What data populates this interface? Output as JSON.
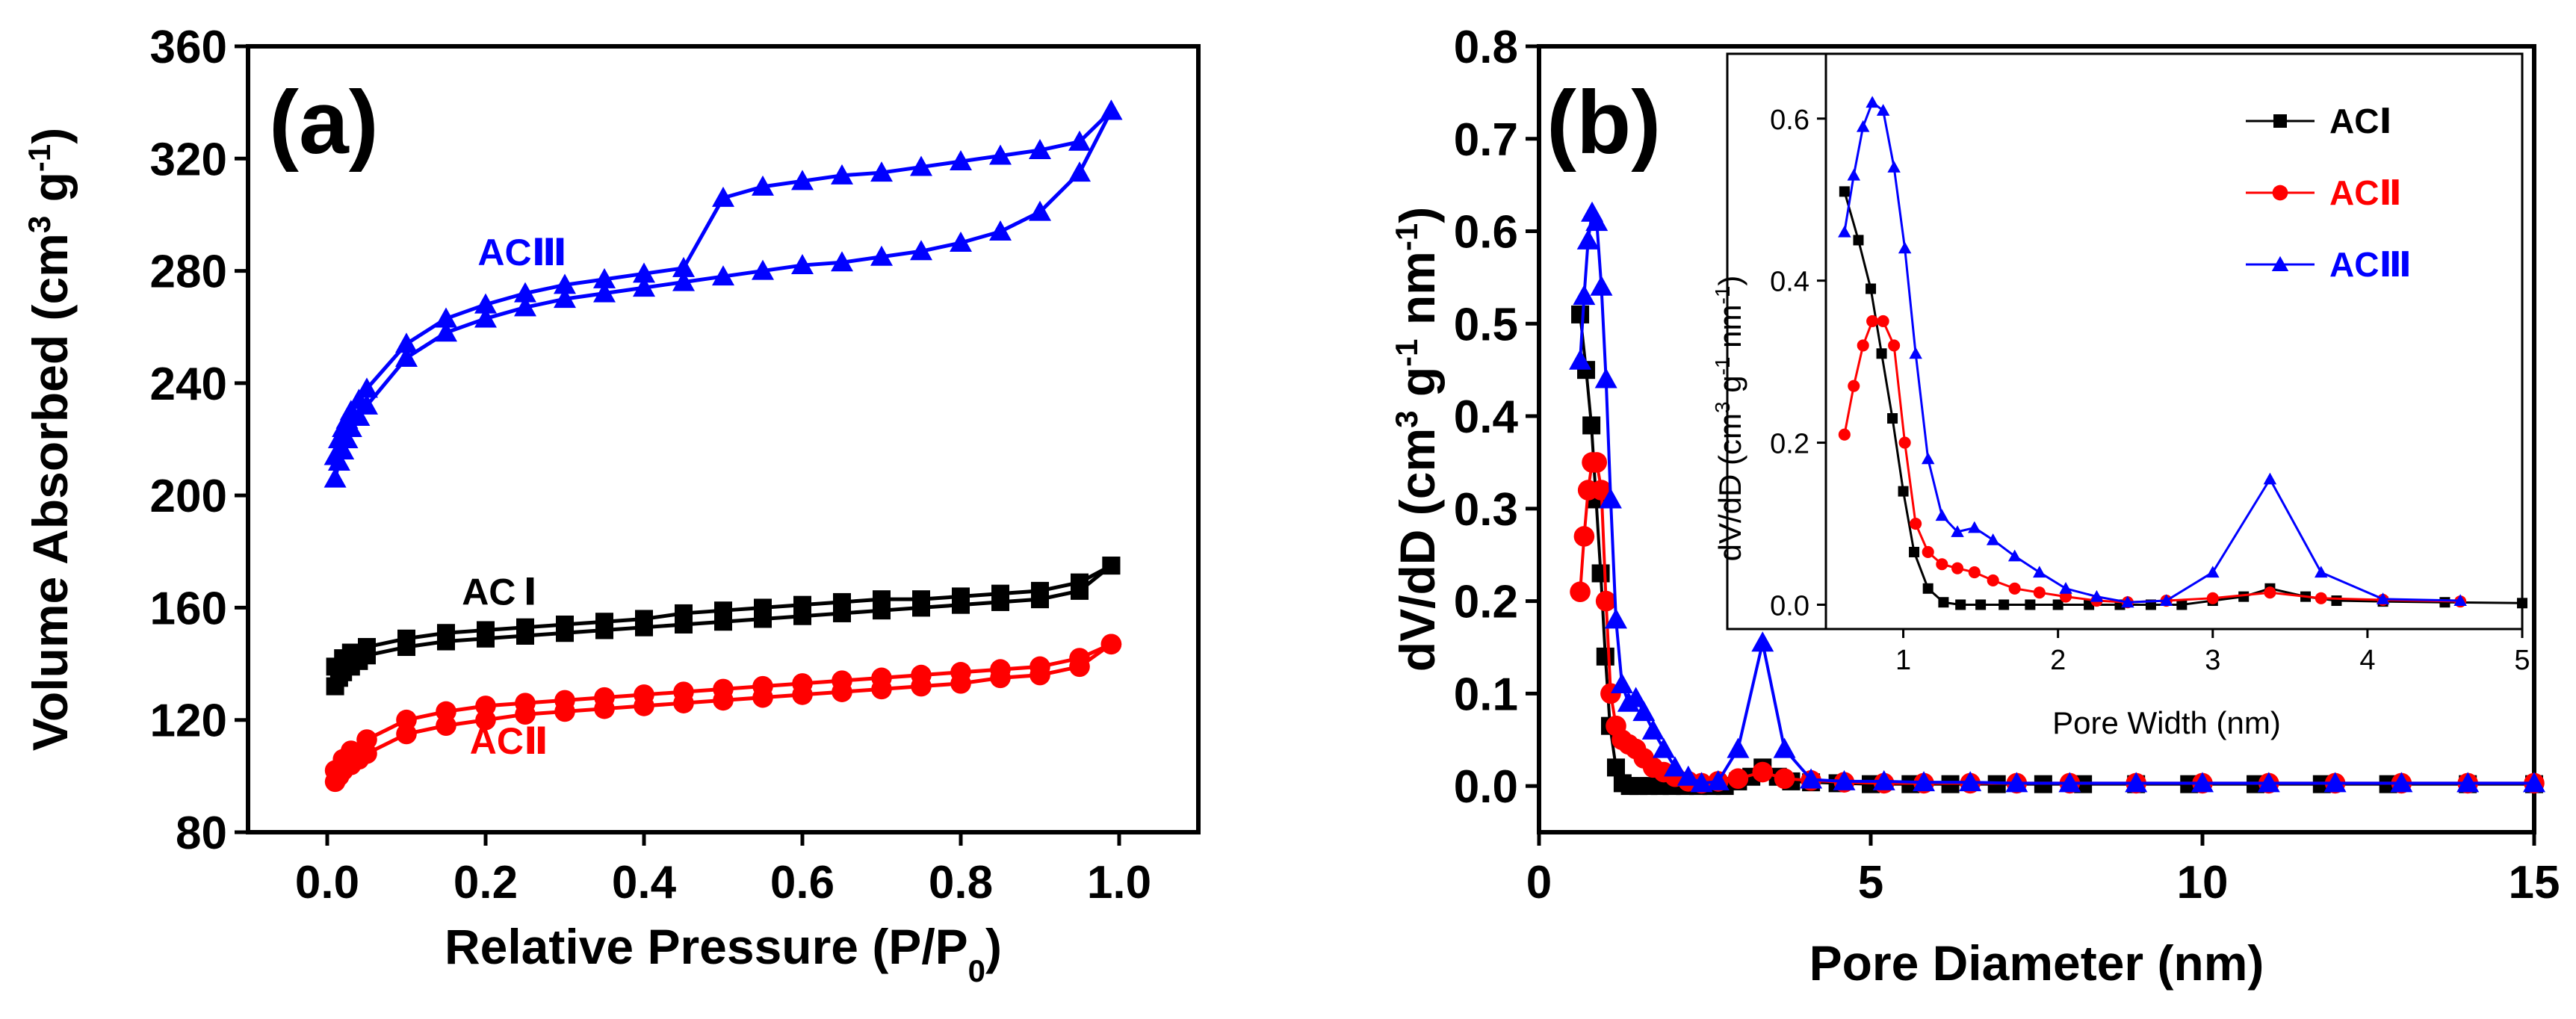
{
  "chart_data": [
    {
      "type": "line",
      "panel_label": "(a)",
      "xlabel": "Relative Pressure (P/P",
      "xlabel_sub": "0",
      "xlabel_end": ")",
      "ylabel": "Volume Absorbed (cm",
      "ylabel_sup1": "3",
      "ylabel_mid": " g",
      "ylabel_sup2": "-1",
      "ylabel_end": ")",
      "xlim": [
        -0.1,
        1.1
      ],
      "ylim": [
        80,
        360
      ],
      "xticks": [
        0.0,
        0.2,
        0.4,
        0.6,
        0.8,
        1.0
      ],
      "xtick_labels": [
        "0.0",
        "0.2",
        "0.4",
        "0.6",
        "0.8",
        "1.0"
      ],
      "yticks": [
        80,
        120,
        160,
        200,
        240,
        280,
        320,
        360
      ],
      "ytick_labels": [
        "80",
        "120",
        "160",
        "200",
        "240",
        "280",
        "320",
        "360"
      ],
      "series": [
        {
          "name": "ACⅠ",
          "label_text": "AC Ⅰ",
          "color": "#000000",
          "marker": "square",
          "label_at": [
            0.17,
            161
          ],
          "adsorption": {
            "x": [
              0.01,
              0.015,
              0.02,
              0.03,
              0.04,
              0.05,
              0.1,
              0.15,
              0.2,
              0.25,
              0.3,
              0.35,
              0.4,
              0.45,
              0.5,
              0.55,
              0.6,
              0.65,
              0.7,
              0.75,
              0.8,
              0.85,
              0.9,
              0.95,
              0.99
            ],
            "y": [
              132,
              135,
              137,
              139,
              141,
              143,
              146,
              148,
              149,
              150,
              151,
              152,
              153,
              154,
              155,
              156,
              157,
              158,
              159,
              160,
              161,
              162,
              163,
              166,
              175
            ]
          },
          "desorption": {
            "x": [
              0.99,
              0.95,
              0.9,
              0.85,
              0.8,
              0.75,
              0.7,
              0.65,
              0.6,
              0.55,
              0.5,
              0.45,
              0.4,
              0.35,
              0.3,
              0.25,
              0.2,
              0.15,
              0.1,
              0.05,
              0.03,
              0.02,
              0.01
            ],
            "y": [
              175,
              169,
              166,
              165,
              164,
              163,
              163,
              162,
              161,
              160,
              159,
              158,
              156,
              155,
              154,
              153,
              152,
              151,
              149,
              146,
              144,
              142,
              139
            ]
          }
        },
        {
          "name": "ACⅡ",
          "label_text": "ACⅡ",
          "color": "#ff0000",
          "marker": "circle",
          "label_at": [
            0.18,
            108
          ],
          "adsorption": {
            "x": [
              0.01,
              0.015,
              0.02,
              0.03,
              0.04,
              0.05,
              0.1,
              0.15,
              0.2,
              0.25,
              0.3,
              0.35,
              0.4,
              0.45,
              0.5,
              0.55,
              0.6,
              0.65,
              0.7,
              0.75,
              0.8,
              0.85,
              0.9,
              0.95,
              0.99
            ],
            "y": [
              98,
              100,
              102,
              104,
              106,
              108,
              115,
              118,
              120,
              122,
              123,
              124,
              125,
              126,
              127,
              128,
              129,
              130,
              131,
              132,
              133,
              135,
              136,
              139,
              147
            ]
          },
          "desorption": {
            "x": [
              0.99,
              0.95,
              0.9,
              0.85,
              0.8,
              0.75,
              0.7,
              0.65,
              0.6,
              0.55,
              0.5,
              0.45,
              0.4,
              0.35,
              0.3,
              0.25,
              0.2,
              0.15,
              0.1,
              0.05,
              0.03,
              0.02,
              0.01
            ],
            "y": [
              147,
              142,
              139,
              138,
              137,
              136,
              135,
              134,
              133,
              132,
              131,
              130,
              129,
              128,
              127,
              126,
              125,
              123,
              120,
              113,
              109,
              106,
              102
            ]
          }
        },
        {
          "name": "ACⅢ",
          "label_text": "ACⅢ",
          "color": "#0000ff",
          "marker": "triangle",
          "label_at": [
            0.19,
            282
          ],
          "adsorption": {
            "x": [
              0.01,
              0.015,
              0.02,
              0.025,
              0.03,
              0.04,
              0.05,
              0.1,
              0.15,
              0.2,
              0.25,
              0.3,
              0.35,
              0.4,
              0.45,
              0.5,
              0.55,
              0.6,
              0.65,
              0.7,
              0.75,
              0.8,
              0.85,
              0.9,
              0.95,
              0.99
            ],
            "y": [
              206,
              212,
              216,
              220,
              224,
              228,
              232,
              249,
              258,
              263,
              267,
              270,
              272,
              274,
              276,
              278,
              280,
              282,
              283,
              285,
              287,
              290,
              294,
              301,
              315,
              337
            ]
          },
          "desorption": {
            "x": [
              0.99,
              0.95,
              0.9,
              0.85,
              0.8,
              0.75,
              0.7,
              0.65,
              0.6,
              0.55,
              0.5,
              0.45,
              0.4,
              0.35,
              0.3,
              0.25,
              0.2,
              0.15,
              0.1,
              0.05,
              0.04,
              0.03,
              0.025,
              0.02,
              0.015,
              0.01
            ],
            "y": [
              337,
              326,
              323,
              321,
              319,
              317,
              315,
              314,
              312,
              310,
              306,
              281,
              279,
              277,
              275,
              272,
              268,
              263,
              254,
              238,
              234,
              230,
              227,
              224,
              220,
              214
            ]
          }
        }
      ]
    },
    {
      "type": "line",
      "panel_label": "(b)",
      "xlabel": "Pore Diameter (nm)",
      "ylabel": "dV/dD (cm",
      "ylabel_sup1": "3",
      "ylabel_mid": " g",
      "ylabel_sup2": "-1",
      "ylabel_mid2": " nm",
      "ylabel_sup3": "-1",
      "ylabel_end": ")",
      "xlim": [
        0,
        15
      ],
      "ylim": [
        -0.05,
        0.8
      ],
      "xticks": [
        0,
        5,
        10,
        15
      ],
      "xtick_labels": [
        "0",
        "5",
        "10",
        "15"
      ],
      "yticks": [
        0.0,
        0.1,
        0.2,
        0.3,
        0.4,
        0.5,
        0.6,
        0.7,
        0.8
      ],
      "ytick_labels": [
        "0.0",
        "0.1",
        "0.2",
        "0.3",
        "0.4",
        "0.5",
        "0.6",
        "0.7",
        "0.8"
      ],
      "series": [
        {
          "name": "ACⅠ",
          "color": "#000000",
          "marker": "square",
          "x": [
            0.62,
            0.71,
            0.79,
            0.86,
            0.93,
            1.0,
            1.07,
            1.16,
            1.26,
            1.37,
            1.5,
            1.65,
            1.82,
            2.0,
            2.2,
            2.4,
            2.6,
            2.8,
            3.0,
            3.2,
            3.37,
            3.6,
            3.8,
            4.1,
            4.5,
            5.0,
            5.6,
            6.2,
            6.9,
            7.6,
            8.2,
            9.0,
            9.8,
            10.8,
            11.8,
            12.8,
            14.0,
            15.0
          ],
          "y": [
            0.51,
            0.45,
            0.39,
            0.31,
            0.23,
            0.14,
            0.065,
            0.02,
            0.003,
            0,
            0,
            0,
            0,
            0,
            0,
            0,
            0,
            0,
            0.005,
            0.01,
            0.02,
            0.01,
            0.005,
            0.004,
            0.003,
            0.002,
            0.002,
            0.002,
            0.002,
            0.002,
            0.002,
            0.002,
            0.002,
            0.002,
            0.002,
            0.002,
            0.002,
            0.002
          ]
        },
        {
          "name": "ACⅡ",
          "color": "#ff0000",
          "marker": "circle",
          "x": [
            0.62,
            0.68,
            0.74,
            0.8,
            0.87,
            0.94,
            1.01,
            1.08,
            1.16,
            1.25,
            1.35,
            1.46,
            1.58,
            1.72,
            1.88,
            2.05,
            2.25,
            2.45,
            2.7,
            3.0,
            3.37,
            3.7,
            4.1,
            4.6,
            5.2,
            5.8,
            6.5,
            7.2,
            8.0,
            9.0,
            10.0,
            11.0,
            12.0,
            13.0,
            14.0,
            15.0
          ],
          "y": [
            0.21,
            0.27,
            0.32,
            0.35,
            0.35,
            0.32,
            0.2,
            0.1,
            0.065,
            0.05,
            0.045,
            0.04,
            0.03,
            0.02,
            0.015,
            0.01,
            0.005,
            0.003,
            0.005,
            0.008,
            0.015,
            0.008,
            0.006,
            0.004,
            0.003,
            0.003,
            0.003,
            0.003,
            0.003,
            0.003,
            0.003,
            0.003,
            0.003,
            0.003,
            0.003,
            0.003
          ]
        },
        {
          "name": "ACⅢ",
          "color": "#0000ff",
          "marker": "triangle",
          "x": [
            0.62,
            0.68,
            0.74,
            0.8,
            0.87,
            0.94,
            1.01,
            1.08,
            1.16,
            1.25,
            1.35,
            1.46,
            1.58,
            1.72,
            1.88,
            2.05,
            2.25,
            2.45,
            2.7,
            3.0,
            3.37,
            3.7,
            4.1,
            4.6,
            5.2,
            5.8,
            6.5,
            7.2,
            8.0,
            9.0,
            10.0,
            11.0,
            12.0,
            13.0,
            14.0,
            15.0
          ],
          "y": [
            0.46,
            0.53,
            0.59,
            0.62,
            0.61,
            0.54,
            0.44,
            0.31,
            0.18,
            0.11,
            0.09,
            0.095,
            0.08,
            0.06,
            0.04,
            0.02,
            0.01,
            0.003,
            0.005,
            0.04,
            0.155,
            0.04,
            0.007,
            0.005,
            0.005,
            0.004,
            0.004,
            0.003,
            0.003,
            0.003,
            0.003,
            0.003,
            0.003,
            0.003,
            0.003,
            0.003
          ]
        }
      ]
    },
    {
      "type": "line",
      "inset_of": "(b)",
      "xlabel": "Pore Width (nm)",
      "ylabel": "dV/dD (cm",
      "ylabel_sup1": "3",
      "ylabel_mid": " g",
      "ylabel_sup2": "-1",
      "ylabel_mid2": " nm",
      "ylabel_sup3": "-1",
      "ylabel_end": ")",
      "xlim": [
        0.5,
        5.0
      ],
      "ylim": [
        -0.03,
        0.68
      ],
      "xticks": [
        1,
        2,
        3,
        4,
        5
      ],
      "xtick_labels": [
        "1",
        "2",
        "3",
        "4",
        "5"
      ],
      "yticks": [
        0.0,
        0.2,
        0.4,
        0.6
      ],
      "ytick_labels": [
        "0.0",
        "0.2",
        "0.4",
        "0.6"
      ],
      "legend": {
        "position": "top-right",
        "entries": [
          {
            "text": "ACⅠ",
            "series": 0
          },
          {
            "text": "ACⅡ",
            "series": 1
          },
          {
            "text": "ACⅢ",
            "series": 2
          }
        ]
      }
    }
  ]
}
